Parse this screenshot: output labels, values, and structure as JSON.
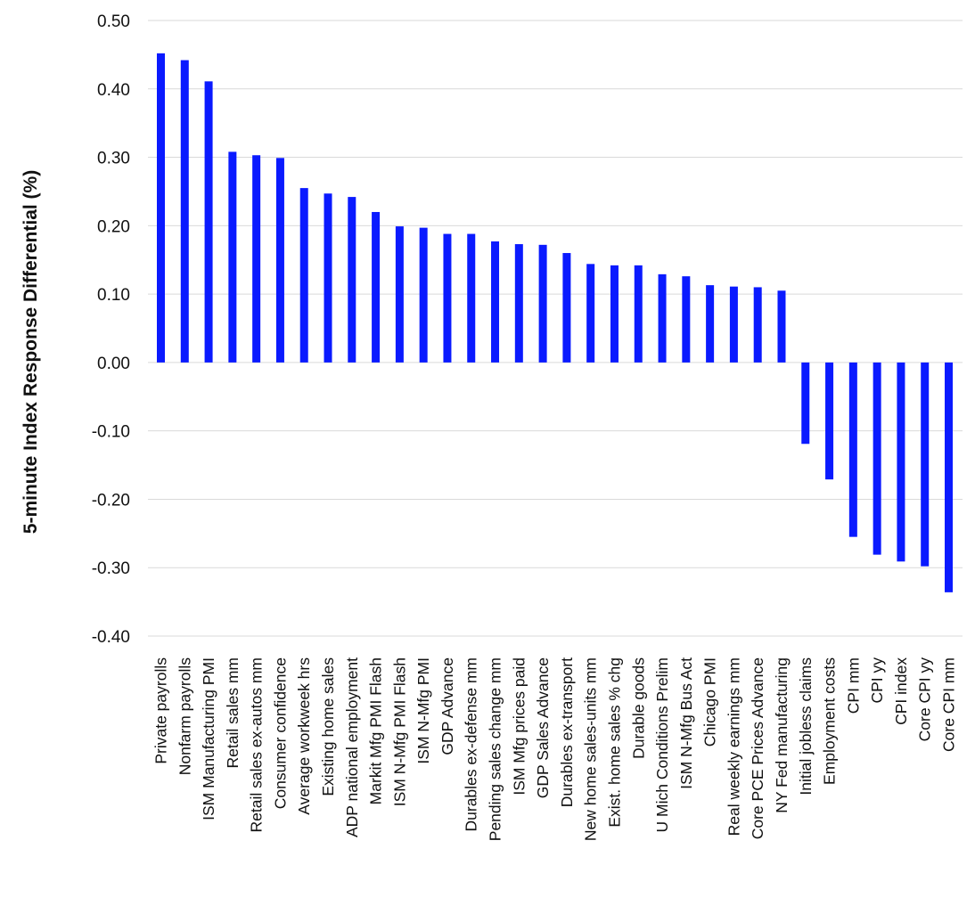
{
  "chart_data": {
    "type": "bar",
    "title": "",
    "xlabel": "",
    "ylabel": "5-minute Index Response Differential (%)",
    "ylim": [
      -0.4,
      0.5
    ],
    "yticks": [
      "0.50",
      "0.40",
      "0.30",
      "0.20",
      "0.10",
      "0.00",
      "-0.10",
      "-0.20",
      "-0.30",
      "-0.40"
    ],
    "ytick_values": [
      0.5,
      0.4,
      0.3,
      0.2,
      0.1,
      0.0,
      -0.1,
      -0.2,
      -0.3,
      -0.4
    ],
    "grid": true,
    "bar_color": "#0a1aff",
    "gridline_color": "#d9d9d9",
    "categories": [
      "Private payrolls",
      "Nonfarm payrolls",
      "ISM Manufacturing PMI",
      "Retail sales mm",
      "Retail sales ex-autos mm",
      "Consumer confidence",
      "Average workweek hrs",
      "Existing home sales",
      "ADP national employment",
      "Markit Mfg PMI Flash",
      "ISM N-Mfg PMI Flash",
      "ISM N-Mfg PMI",
      "GDP Advance",
      "Durables ex-defense mm",
      "Pending sales change mm",
      "ISM Mfg prices paid",
      "GDP Sales Advance",
      "Durables ex-transport",
      "New home sales-units mm",
      "Exist. home sales % chg",
      "Durable goods",
      "U Mich Conditions Prelim",
      "ISM N-Mfg Bus Act",
      "Chicago PMI",
      "Real weekly earnings mm",
      "Core PCE Prices Advance",
      "NY Fed manufacturing",
      "Initial jobless claims",
      "Employment costs",
      "CPI mm",
      "CPI yy",
      "CPI index",
      "Core CPI yy",
      "Core CPI mm"
    ],
    "values": [
      0.452,
      0.442,
      0.411,
      0.308,
      0.303,
      0.299,
      0.255,
      0.247,
      0.242,
      0.22,
      0.199,
      0.197,
      0.188,
      0.188,
      0.177,
      0.173,
      0.172,
      0.16,
      0.144,
      0.142,
      0.142,
      0.129,
      0.126,
      0.113,
      0.111,
      0.11,
      0.105,
      -0.119,
      -0.171,
      -0.255,
      -0.281,
      -0.291,
      -0.298,
      -0.336
    ]
  }
}
